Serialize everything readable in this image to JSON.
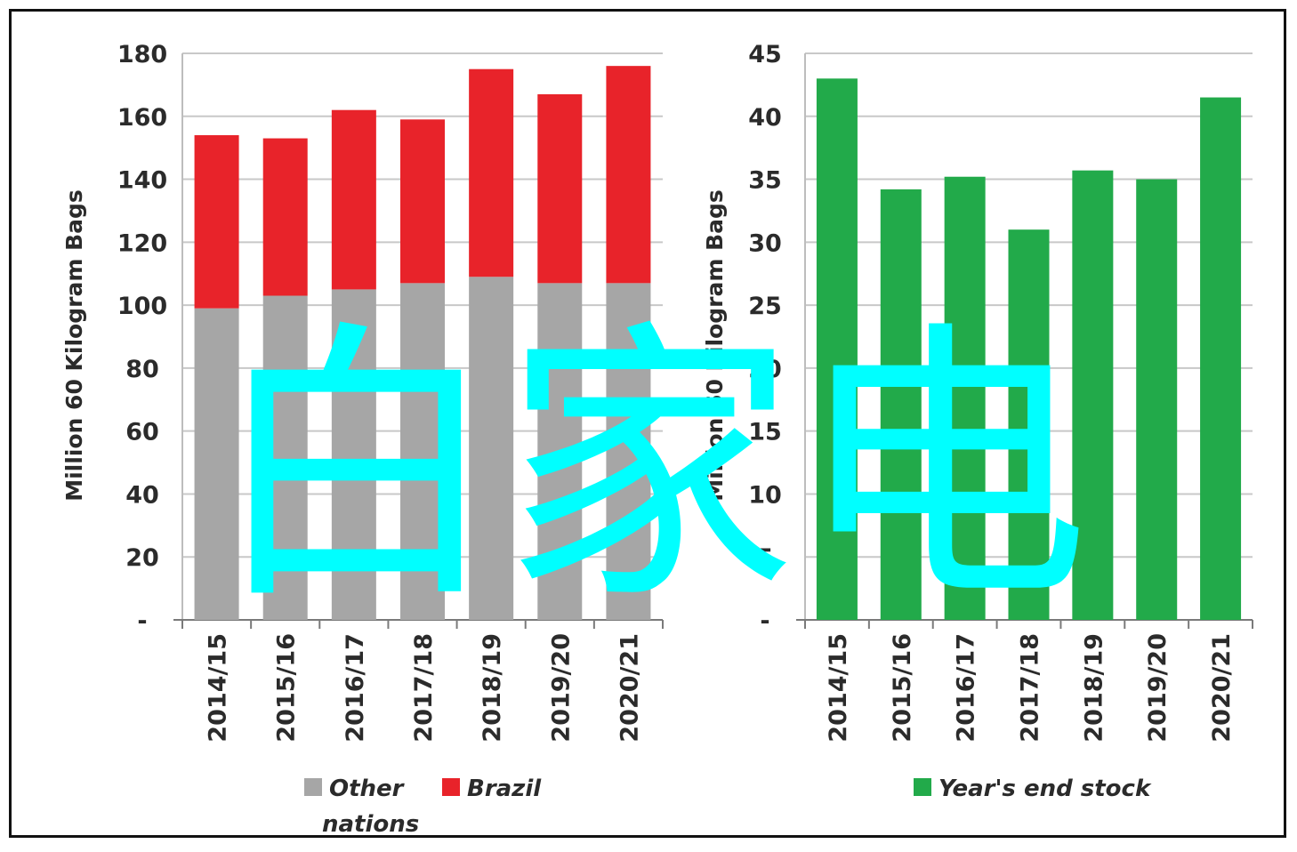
{
  "watermark": "白家电",
  "chart_data": [
    {
      "type": "bar",
      "stacked": true,
      "categories": [
        "2014/15",
        "2015/16",
        "2016/17",
        "2017/18",
        "2018/19",
        "2019/20",
        "2020/21"
      ],
      "series": [
        {
          "name": "Other nations",
          "color": "#a6a6a6",
          "values": [
            99,
            103,
            105,
            107,
            109,
            107,
            107
          ]
        },
        {
          "name": "Brazil",
          "color": "#e8232a",
          "values": [
            55,
            50,
            57,
            52,
            66,
            60,
            69
          ]
        }
      ],
      "ylabel": "Million 60 Kilogram Bags",
      "ylim": [
        0,
        180
      ],
      "yticks": [
        "-",
        "20",
        "40",
        "60",
        "80",
        "100",
        "120",
        "140",
        "160",
        "180"
      ],
      "grid": true,
      "legend": "bottom"
    },
    {
      "type": "bar",
      "categories": [
        "2014/15",
        "2015/16",
        "2016/17",
        "2017/18",
        "2018/19",
        "2019/20",
        "2020/21"
      ],
      "series": [
        {
          "name": "Year's end stock",
          "color": "#22aa4a",
          "values": [
            43,
            34.2,
            35.2,
            31,
            35.7,
            35,
            41.5
          ]
        }
      ],
      "ylabel": "Million 60 Kilogram Bags",
      "ylim": [
        0,
        45
      ],
      "yticks": [
        "-",
        "5",
        "10",
        "15",
        "20",
        "25",
        "30",
        "35",
        "40",
        "45"
      ],
      "grid": true,
      "legend": "bottom"
    }
  ]
}
